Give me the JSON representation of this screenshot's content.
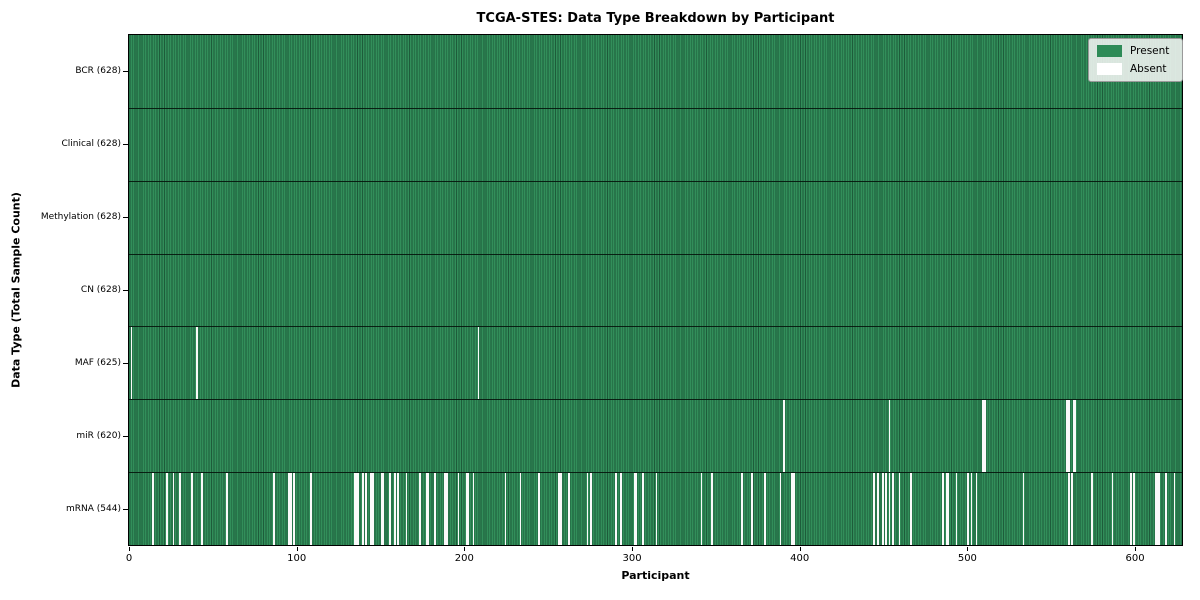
{
  "colors": {
    "present": "#2e8b57",
    "present_edge": "#1d5c3a",
    "absent": "#ffffff",
    "legend_bg": "#f0f3f0",
    "spine": "#000000"
  },
  "chart_data": {
    "type": "heatmap",
    "title": "TCGA-STES: Data Type Breakdown by Participant",
    "xlabel": "Participant",
    "ylabel": "Data Type (Total Sample Count)",
    "xlim": [
      0,
      628
    ],
    "n_participants": 628,
    "x_ticks": [
      0,
      100,
      200,
      300,
      400,
      500,
      600
    ],
    "grid": false,
    "legend_position": "upper right",
    "legend": {
      "present": "Present",
      "absent": "Absent"
    },
    "rows": [
      {
        "data_type": "BCR",
        "label": "BCR (628)",
        "present_count": 628,
        "absent_participants": []
      },
      {
        "data_type": "Clinical",
        "label": "Clinical (628)",
        "present_count": 628,
        "absent_participants": []
      },
      {
        "data_type": "Methylation",
        "label": "Methylation (628)",
        "present_count": 628,
        "absent_participants": []
      },
      {
        "data_type": "CN",
        "label": "CN (628)",
        "present_count": 628,
        "absent_participants": []
      },
      {
        "data_type": "MAF",
        "label": "MAF (625)",
        "present_count": 625,
        "absent_participants": [
          1,
          40,
          208
        ]
      },
      {
        "data_type": "miR",
        "label": "miR (620)",
        "present_count": 620,
        "absent_participants": [
          390,
          453,
          509,
          510,
          559,
          560,
          563,
          564
        ]
      },
      {
        "data_type": "mRNA",
        "label": "mRNA (544)",
        "present_count": 544,
        "absent_participants": [
          14,
          22,
          26,
          30,
          37,
          43,
          58,
          86,
          95,
          96,
          98,
          108,
          134,
          135,
          136,
          139,
          141,
          144,
          145,
          150,
          151,
          155,
          158,
          160,
          165,
          173,
          177,
          178,
          182,
          188,
          189,
          196,
          201,
          202,
          205,
          224,
          233,
          244,
          256,
          257,
          262,
          273,
          275,
          290,
          293,
          301,
          302,
          306,
          314,
          341,
          347,
          365,
          371,
          379,
          388,
          395,
          396,
          444,
          446,
          449,
          451,
          453,
          455,
          459,
          466,
          485,
          487,
          488,
          493,
          500,
          502,
          505,
          533,
          560,
          562,
          574,
          586,
          597,
          599,
          612,
          613,
          614,
          618,
          623
        ]
      }
    ]
  }
}
